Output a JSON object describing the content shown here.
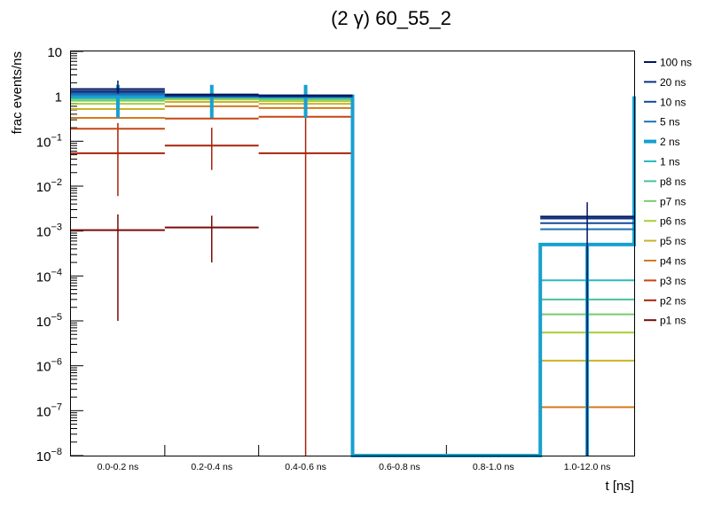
{
  "chart_data": {
    "type": "line",
    "title": "(2 γ) 60_55_2",
    "xlabel": "t [ns]",
    "ylabel": "frac events/ns",
    "categories": [
      "0.0-0.2 ns",
      "0.2-0.4 ns",
      "0.4-0.6 ns",
      "0.6-0.8 ns",
      "0.8-1.0 ns",
      "1.0-12.0 ns"
    ],
    "y_scale": "log",
    "ylim": [
      1e-08,
      10
    ],
    "ytick_labels": [
      {
        "base": "10",
        "exp": "",
        "value": 10
      },
      {
        "base": "1",
        "exp": "",
        "value": 1
      },
      {
        "base": "10",
        "exp": "−1",
        "value": 0.1
      },
      {
        "base": "10",
        "exp": "−2",
        "value": 0.01
      },
      {
        "base": "10",
        "exp": "−3",
        "value": 0.001
      },
      {
        "base": "10",
        "exp": "−4",
        "value": 0.0001
      },
      {
        "base": "10",
        "exp": "−5",
        "value": 1e-05
      },
      {
        "base": "10",
        "exp": "−6",
        "value": 1e-06
      },
      {
        "base": "10",
        "exp": "−7",
        "value": 1e-07
      },
      {
        "base": "10",
        "exp": "−8",
        "value": 1e-08
      }
    ],
    "grid": false,
    "legend_position": "right",
    "series": [
      {
        "name": "100 ns",
        "color": "#00185e",
        "values": [
          1.45,
          1.1,
          1.05,
          null,
          null,
          0.0021
        ],
        "err_low": [
          0.3,
          null,
          null,
          null,
          null,
          null
        ],
        "err_high": [
          0.8,
          null,
          null,
          null,
          null,
          0.0023
        ]
      },
      {
        "name": "20 ns",
        "color": "#0e2f84",
        "values": [
          1.3,
          1.05,
          1.0,
          null,
          null,
          0.0019
        ]
      },
      {
        "name": "10 ns",
        "color": "#13489d",
        "values": [
          1.2,
          1.02,
          1.0,
          null,
          null,
          0.0015
        ]
      },
      {
        "name": "5 ns",
        "color": "#1a72b4",
        "values": [
          1.1,
          1.0,
          0.98,
          null,
          null,
          0.0011
        ]
      },
      {
        "name": "2 ns",
        "color": "#17a0d0",
        "values": [
          1.0,
          1.0,
          1.0,
          1e-08,
          1e-08,
          0.0005
        ],
        "highlight": true
      },
      {
        "name": "1 ns",
        "color": "#2db8c0",
        "values": [
          0.95,
          0.98,
          0.95,
          null,
          null,
          8e-05
        ]
      },
      {
        "name": "p8 ns",
        "color": "#48c49a",
        "values": [
          0.88,
          0.95,
          0.9,
          null,
          null,
          3e-05
        ]
      },
      {
        "name": "p7 ns",
        "color": "#78cc6a",
        "values": [
          0.8,
          0.9,
          0.85,
          null,
          null,
          1.4e-05
        ]
      },
      {
        "name": "p6 ns",
        "color": "#a9cf3a",
        "values": [
          0.68,
          0.85,
          0.78,
          null,
          null,
          5.5e-06
        ]
      },
      {
        "name": "p5 ns",
        "color": "#cdb12a",
        "values": [
          0.52,
          0.75,
          0.68,
          null,
          null,
          1.3e-06
        ]
      },
      {
        "name": "p4 ns",
        "color": "#d47a1c",
        "values": [
          0.33,
          0.6,
          0.55,
          null,
          null,
          1.2e-07
        ]
      },
      {
        "name": "p3 ns",
        "color": "#c64512",
        "values": [
          0.19,
          0.32,
          0.35,
          null,
          null,
          null
        ]
      },
      {
        "name": "p2 ns",
        "color": "#a8220c",
        "values": [
          0.054,
          0.08,
          0.054,
          null,
          null,
          null
        ],
        "err_low": [
          0.048,
          0.057,
          0.054,
          null,
          null,
          null
        ],
        "err_high": [
          0.2,
          0.12,
          0.3,
          null,
          null,
          null
        ]
      },
      {
        "name": "p1 ns",
        "color": "#7d0a0a",
        "values": [
          0.00105,
          0.0012,
          null,
          null,
          null,
          null
        ],
        "err_low": [
          0.00104,
          0.001,
          null,
          null,
          null,
          null
        ],
        "err_high": [
          0.0013,
          0.001,
          null,
          null,
          null,
          null
        ]
      }
    ]
  }
}
